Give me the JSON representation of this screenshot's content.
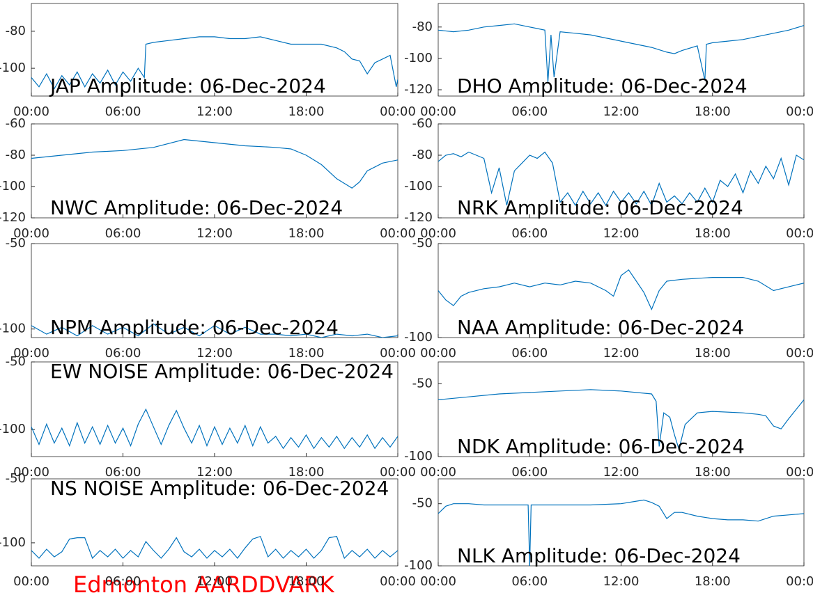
{
  "chart_data": [
    {
      "type": "line",
      "title": "JAP Amplitude: 06-Dec-2024",
      "color": "#0072bd",
      "xlim": [
        0,
        24
      ],
      "ylim": [
        -115,
        -65
      ],
      "yticks": [
        -80,
        -100
      ],
      "xticks": [
        {
          "value": 0,
          "label": "00:00"
        },
        {
          "value": 6,
          "label": "06:00"
        },
        {
          "value": 12,
          "label": "12:00"
        },
        {
          "value": 18,
          "label": "18:00"
        },
        {
          "value": 24,
          "label": "00:00"
        }
      ],
      "x": [
        0,
        0.5,
        1,
        1.5,
        2,
        2.5,
        3,
        3.5,
        4,
        4.5,
        5,
        5.5,
        6,
        6.5,
        7,
        7.4,
        7.5,
        8,
        9,
        10,
        11,
        12,
        13,
        14,
        15,
        16,
        17,
        18,
        19,
        20,
        20.5,
        21,
        21.5,
        22,
        22.5,
        23,
        23.5,
        23.9,
        24
      ],
      "values": [
        -105,
        -110,
        -103,
        -111,
        -104,
        -109,
        -102,
        -110,
        -103,
        -108,
        -101,
        -109,
        -102,
        -107,
        -100,
        -105,
        -87,
        -86,
        -85,
        -84,
        -83,
        -83,
        -84,
        -84,
        -83,
        -85,
        -87,
        -87,
        -87,
        -89,
        -91,
        -95,
        -96,
        -103,
        -97,
        -95,
        -93,
        -110,
        -106
      ]
    },
    {
      "type": "line",
      "title": "DHO Amplitude: 06-Dec-2024",
      "color": "#0072bd",
      "xlim": [
        0,
        24
      ],
      "ylim": [
        -124,
        -65
      ],
      "yticks": [
        -80,
        -100,
        -120
      ],
      "xticks": [
        {
          "value": 0,
          "label": "00:00"
        },
        {
          "value": 6,
          "label": "06:00"
        },
        {
          "value": 12,
          "label": "12:00"
        },
        {
          "value": 18,
          "label": "18:00"
        },
        {
          "value": 24,
          "label": "00:00"
        }
      ],
      "x": [
        0,
        1,
        2,
        3,
        4,
        5,
        6,
        7,
        7.2,
        7.4,
        7.6,
        8,
        9,
        10,
        11,
        12,
        13,
        14,
        15,
        15.5,
        16,
        17,
        17.5,
        17.6,
        18,
        19,
        20,
        21,
        22,
        23,
        24
      ],
      "values": [
        -82,
        -83,
        -82,
        -80,
        -79,
        -78,
        -80,
        -82,
        -115,
        -85,
        -112,
        -83,
        -84,
        -85,
        -87,
        -89,
        -91,
        -93,
        -96,
        -97,
        -95,
        -92,
        -114,
        -91,
        -90,
        -89,
        -88,
        -86,
        -84,
        -82,
        -79
      ]
    },
    {
      "type": "line",
      "title": "NWC Amplitude: 06-Dec-2024",
      "color": "#0072bd",
      "xlim": [
        0,
        24
      ],
      "ylim": [
        -120,
        -60
      ],
      "yticks": [
        -60,
        -80,
        -100,
        -120
      ],
      "xticks": [
        {
          "value": 0,
          "label": "00:00"
        },
        {
          "value": 6,
          "label": "06:00"
        },
        {
          "value": 12,
          "label": "12:00"
        },
        {
          "value": 18,
          "label": "18:00"
        },
        {
          "value": 24,
          "label": "00:00"
        }
      ],
      "x": [
        0,
        2,
        4,
        6,
        8,
        10,
        12,
        14,
        16,
        17,
        18,
        19,
        20,
        20.5,
        21,
        21.5,
        22,
        23,
        24
      ],
      "values": [
        -82,
        -80,
        -78,
        -77,
        -75,
        -70,
        -72,
        -74,
        -75,
        -76,
        -80,
        -86,
        -95,
        -98,
        -101,
        -97,
        -90,
        -85,
        -83
      ]
    },
    {
      "type": "line",
      "title": "NRK Amplitude: 06-Dec-2024",
      "color": "#0072bd",
      "xlim": [
        0,
        24
      ],
      "ylim": [
        -120,
        -60
      ],
      "yticks": [
        -60,
        -80,
        -100,
        -120
      ],
      "xticks": [
        {
          "value": 0,
          "label": "00:00"
        },
        {
          "value": 6,
          "label": "06:00"
        },
        {
          "value": 12,
          "label": "12:00"
        },
        {
          "value": 18,
          "label": "18:00"
        },
        {
          "value": 24,
          "label": "00:00"
        }
      ],
      "x": [
        0,
        0.5,
        1,
        1.5,
        2,
        2.5,
        3,
        3.5,
        4,
        4.5,
        5,
        5.5,
        6,
        6.5,
        7,
        7.5,
        8,
        8.5,
        9,
        9.5,
        10,
        10.5,
        11,
        11.5,
        12,
        12.5,
        13,
        13.5,
        14,
        14.5,
        15,
        15.5,
        16,
        16.5,
        17,
        17.5,
        18,
        18.5,
        19,
        19.5,
        20,
        20.5,
        21,
        21.5,
        22,
        22.5,
        23,
        23.5,
        24
      ],
      "values": [
        -84,
        -80,
        -79,
        -81,
        -78,
        -80,
        -82,
        -104,
        -88,
        -112,
        -90,
        -85,
        -80,
        -82,
        -78,
        -85,
        -110,
        -104,
        -112,
        -103,
        -111,
        -104,
        -112,
        -103,
        -110,
        -104,
        -111,
        -103,
        -112,
        -98,
        -110,
        -106,
        -111,
        -104,
        -110,
        -101,
        -110,
        -96,
        -100,
        -92,
        -104,
        -90,
        -98,
        -87,
        -95,
        -82,
        -99,
        -80,
        -83
      ]
    },
    {
      "type": "line",
      "title": "NPM Amplitude: 06-Dec-2024",
      "color": "#0072bd",
      "xlim": [
        0,
        24
      ],
      "ylim": [
        -105,
        -50
      ],
      "yticks": [
        -50,
        -100
      ],
      "xticks": [
        {
          "value": 0,
          "label": "00:00"
        },
        {
          "value": 6,
          "label": "06:00"
        },
        {
          "value": 12,
          "label": "12:00"
        },
        {
          "value": 18,
          "label": "18:00"
        },
        {
          "value": 24,
          "label": "00:00"
        }
      ],
      "x": [
        0,
        1,
        2,
        3,
        4,
        5,
        6,
        7,
        8,
        9,
        10,
        11,
        12,
        13,
        14,
        15,
        16,
        17,
        18,
        19,
        20,
        21,
        22,
        23,
        24
      ],
      "values": [
        -98,
        -103,
        -99,
        -104,
        -98,
        -103,
        -99,
        -104,
        -97,
        -103,
        -99,
        -104,
        -98,
        -103,
        -99,
        -103,
        -103,
        -104,
        -103,
        -105,
        -103,
        -104,
        -103,
        -105,
        -104
      ]
    },
    {
      "type": "line",
      "title": "NAA Amplitude: 06-Dec-2024",
      "color": "#0072bd",
      "xlim": [
        0,
        24
      ],
      "ylim": [
        -100,
        -50
      ],
      "yticks": [
        -50,
        -100
      ],
      "xticks": [
        {
          "value": 0,
          "label": "00:00"
        },
        {
          "value": 6,
          "label": "06:00"
        },
        {
          "value": 12,
          "label": "12:00"
        },
        {
          "value": 18,
          "label": "18:00"
        },
        {
          "value": 24,
          "label": "00:00"
        }
      ],
      "x": [
        0,
        0.5,
        1,
        1.5,
        2,
        3,
        4,
        5,
        6,
        7,
        8,
        9,
        10,
        11,
        11.5,
        12,
        12.5,
        13,
        13.5,
        14,
        14.5,
        15,
        16,
        18,
        20,
        21,
        22,
        23,
        24
      ],
      "values": [
        -75,
        -80,
        -83,
        -78,
        -76,
        -74,
        -73,
        -71,
        -73,
        -71,
        -72,
        -70,
        -71,
        -75,
        -78,
        -67,
        -64,
        -70,
        -76,
        -85,
        -75,
        -70,
        -69,
        -68,
        -68,
        -70,
        -75,
        -73,
        -71
      ]
    },
    {
      "type": "line",
      "title": "EW NOISE Amplitude: 06-Dec-2024",
      "color": "#0072bd",
      "xlim": [
        0,
        24
      ],
      "ylim": [
        -120,
        -50
      ],
      "yticks": [
        -50,
        -100
      ],
      "xticks": [
        {
          "value": 0,
          "label": "00:00"
        },
        {
          "value": 6,
          "label": "06:00"
        },
        {
          "value": 12,
          "label": "12:00"
        },
        {
          "value": 18,
          "label": "18:00"
        },
        {
          "value": 24,
          "label": "00:00"
        }
      ],
      "x": [
        0,
        0.5,
        1,
        1.5,
        2,
        2.5,
        3,
        3.5,
        4,
        4.5,
        5,
        5.5,
        6,
        6.5,
        7,
        7.5,
        8,
        8.5,
        9,
        9.5,
        10,
        10.5,
        11,
        11.5,
        12,
        12.5,
        13,
        13.5,
        14,
        14.5,
        15,
        15.5,
        16,
        16.5,
        17,
        17.5,
        18,
        18.5,
        19,
        19.5,
        20,
        20.5,
        21,
        21.5,
        22,
        22.5,
        23,
        23.5,
        24
      ],
      "values": [
        -98,
        -111,
        -96,
        -110,
        -99,
        -112,
        -95,
        -110,
        -98,
        -111,
        -97,
        -110,
        -99,
        -112,
        -96,
        -85,
        -98,
        -111,
        -97,
        -86,
        -99,
        -110,
        -97,
        -112,
        -98,
        -111,
        -99,
        -110,
        -97,
        -112,
        -98,
        -110,
        -105,
        -114,
        -106,
        -113,
        -104,
        -114,
        -106,
        -113,
        -105,
        -114,
        -106,
        -113,
        -104,
        -114,
        -106,
        -113,
        -105
      ]
    },
    {
      "type": "line",
      "title": "NDK Amplitude: 06-Dec-2024",
      "color": "#0072bd",
      "xlim": [
        0,
        24
      ],
      "ylim": [
        -100,
        -35
      ],
      "yticks": [
        -50,
        -100
      ],
      "xticks": [
        {
          "value": 0,
          "label": "00:00"
        },
        {
          "value": 6,
          "label": "06:00"
        },
        {
          "value": 12,
          "label": "12:00"
        },
        {
          "value": 18,
          "label": "18:00"
        },
        {
          "value": 24,
          "label": "00:00"
        }
      ],
      "x": [
        0,
        2,
        4,
        6,
        8,
        10,
        12,
        14,
        14.3,
        14.5,
        14.8,
        15.2,
        15.5,
        15.8,
        16.2,
        17,
        18,
        20,
        21,
        21.5,
        22,
        22.5,
        23,
        24
      ],
      "values": [
        -61,
        -59,
        -57,
        -56,
        -55,
        -54,
        -55,
        -57,
        -62,
        -93,
        -70,
        -73,
        -85,
        -95,
        -78,
        -70,
        -69,
        -70,
        -71,
        -72,
        -79,
        -81,
        -74,
        -61
      ]
    },
    {
      "type": "line",
      "title": "NS NOISE Amplitude: 06-Dec-2024",
      "color": "#0072bd",
      "xlim": [
        0,
        24
      ],
      "ylim": [
        -118,
        -50
      ],
      "yticks": [
        -50,
        -100
      ],
      "xticks": [
        {
          "value": 0,
          "label": "00:00"
        },
        {
          "value": 6,
          "label": "06:00"
        },
        {
          "value": 12,
          "label": "12:00"
        },
        {
          "value": 18,
          "label": "18:00"
        },
        {
          "value": 24,
          "label": "00:00"
        }
      ],
      "x": [
        0,
        0.5,
        1,
        1.5,
        2,
        2.5,
        3,
        3.5,
        4,
        4.5,
        5,
        5.5,
        6,
        6.5,
        7,
        7.5,
        8,
        8.5,
        9,
        9.5,
        10,
        10.5,
        11,
        11.5,
        12,
        12.5,
        13,
        13.5,
        14,
        14.5,
        15,
        15.5,
        16,
        16.5,
        17,
        17.5,
        18,
        18.5,
        19,
        19.5,
        20,
        20.5,
        21,
        21.5,
        22,
        22.5,
        23,
        23.5,
        24
      ],
      "values": [
        -106,
        -112,
        -105,
        -111,
        -107,
        -97,
        -96,
        -96,
        -112,
        -106,
        -111,
        -105,
        -112,
        -106,
        -111,
        -99,
        -106,
        -112,
        -105,
        -96,
        -107,
        -111,
        -105,
        -112,
        -106,
        -111,
        -105,
        -112,
        -104,
        -97,
        -95,
        -111,
        -105,
        -112,
        -106,
        -111,
        -105,
        -112,
        -106,
        -96,
        -95,
        -112,
        -106,
        -111,
        -105,
        -112,
        -106,
        -111,
        -106
      ]
    },
    {
      "type": "line",
      "title": "NLK Amplitude: 06-Dec-2024",
      "color": "#0072bd",
      "xlim": [
        0,
        24
      ],
      "ylim": [
        -100,
        -30
      ],
      "yticks": [
        -50,
        -100
      ],
      "xticks": [
        {
          "value": 0,
          "label": "00:00"
        },
        {
          "value": 6,
          "label": "06:00"
        },
        {
          "value": 12,
          "label": "12:00"
        },
        {
          "value": 18,
          "label": "18:00"
        },
        {
          "value": 24,
          "label": "00:00"
        }
      ],
      "x": [
        0,
        0.5,
        1,
        2,
        3,
        4,
        5,
        5.9,
        6,
        6.1,
        7,
        8,
        10,
        12,
        13,
        13.5,
        14,
        14.5,
        15,
        15.5,
        16,
        17,
        18,
        19,
        20,
        21,
        22,
        23,
        24
      ],
      "values": [
        -58,
        -52,
        -50,
        -50,
        -51,
        -51,
        -51,
        -51,
        -100,
        -51,
        -51,
        -51,
        -51,
        -50,
        -48,
        -47,
        -49,
        -52,
        -62,
        -57,
        -57,
        -60,
        -62,
        -63,
        -63,
        -64,
        -60,
        -59,
        -58
      ]
    }
  ],
  "footer": "Edmonton AARDDVARK"
}
